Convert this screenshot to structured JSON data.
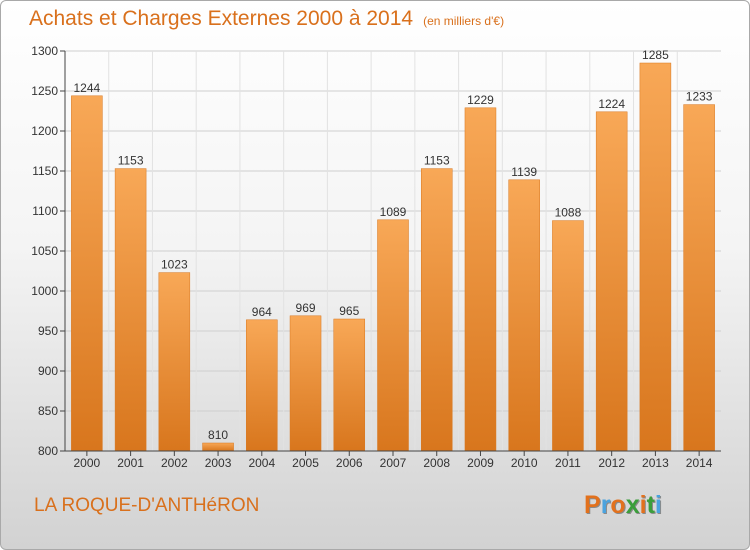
{
  "header": {
    "title": "Achats et Charges Externes 2000 à 2014",
    "subtitle": "(en milliers d'€)"
  },
  "footer": {
    "place": "LA ROQUE-D'ANTHéRON",
    "brand": "Proxiti",
    "brand_colors": [
      "#e2711d",
      "#4aa3df",
      "#e2711d",
      "#3b9e3b",
      "#e2711d",
      "#3b9e3b",
      "#4aa3df"
    ]
  },
  "colors": {
    "bar": "#f0923c",
    "bar_light": "#f8a857",
    "bar_dark": "#d8761d",
    "title": "#d9701c",
    "grid": "#cfcfcf",
    "axis": "#444444"
  },
  "chart_data": {
    "type": "bar",
    "categories": [
      "2000",
      "2001",
      "2002",
      "2003",
      "2004",
      "2005",
      "2006",
      "2007",
      "2008",
      "2009",
      "2010",
      "2011",
      "2012",
      "2013",
      "2014"
    ],
    "values": [
      1244,
      1153,
      1023,
      810,
      964,
      969,
      965,
      1089,
      1153,
      1229,
      1139,
      1088,
      1224,
      1285,
      1233
    ],
    "title": "Achats et Charges Externes 2000 à 2014",
    "subtitle": "(en milliers d'€)",
    "ylim": [
      800,
      1300
    ],
    "yticks": [
      800,
      850,
      900,
      950,
      1000,
      1050,
      1100,
      1150,
      1200,
      1250,
      1300
    ],
    "grid": true,
    "data_labels": true
  }
}
